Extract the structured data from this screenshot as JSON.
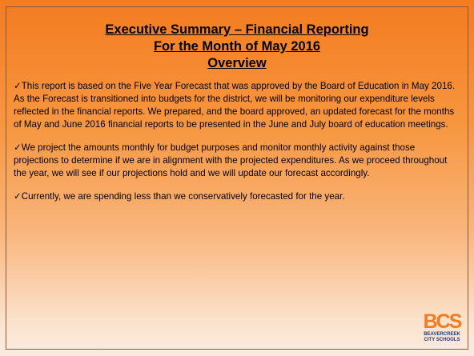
{
  "header": {
    "title_lines": [
      "Executive Summary – Financial Reporting",
      "For the Month of May 2016",
      "Overview"
    ]
  },
  "body": {
    "paragraphs": [
      "✓This report is based on the Five Year Forecast that was approved by the Board of Education in May 2016.  As the Forecast is transitioned into budgets for the district, we will be monitoring our expenditure levels reflected in the financial reports.  We prepared, and the board approved, an updated forecast for the months of May and June 2016 financial reports to be presented in the June and July board of education meetings.",
      "✓We project the amounts monthly for budget purposes and monitor monthly activity against those projections to determine if we are in alignment with the projected expenditures. As we proceed throughout the year, we will see if our projections hold and we will update our forecast accordingly.",
      "✓Currently, we are spending less than we conservatively forecasted for the year."
    ]
  },
  "logo": {
    "letters": "BCS",
    "name_lines": [
      "BEAVERCREEK",
      "CITY SCHOOLS"
    ]
  }
}
